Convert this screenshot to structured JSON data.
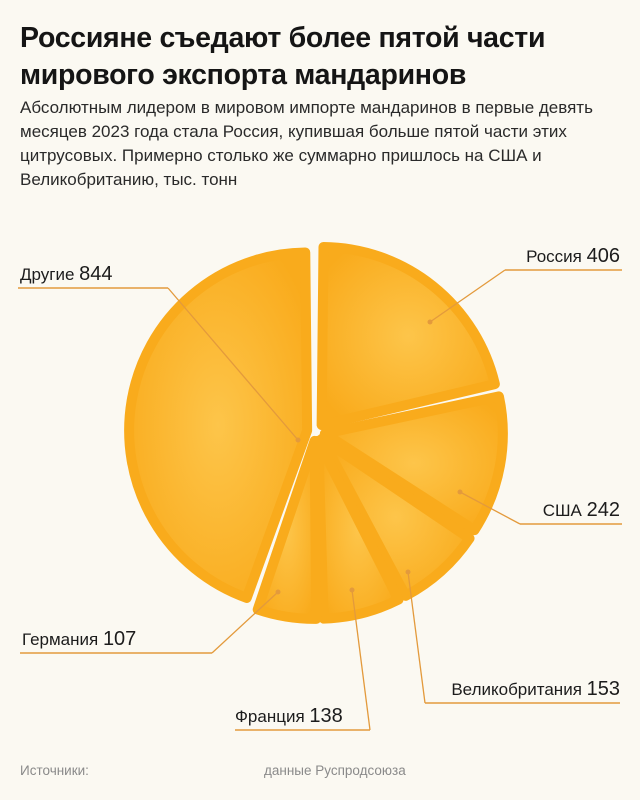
{
  "title": "Россияне съедают более пятой части мирового экспорта мандаринов",
  "subtitle": "Абсолютным лидером в мировом импорте мандаринов в первые девять месяцев 2023 года стала Россия, купившая больше пятой части этих цитрусовых. Примерно столько же суммарно пришлось на США и Великобританию, тыс. тонн",
  "sources_label": "Источники:",
  "sources_value": "данные Руспродсоюза",
  "colors": {
    "slice": "#f9ab1c",
    "slice_light": "#fdc54a",
    "leader": "#e39a3c",
    "background": "#fbf9f2"
  },
  "chart_data": {
    "type": "pie",
    "unit": "тыс. тонн",
    "categories": [
      "Россия",
      "США",
      "Великобритания",
      "Франция",
      "Германия",
      "Другие"
    ],
    "values": [
      406,
      242,
      153,
      138,
      107,
      844
    ]
  }
}
